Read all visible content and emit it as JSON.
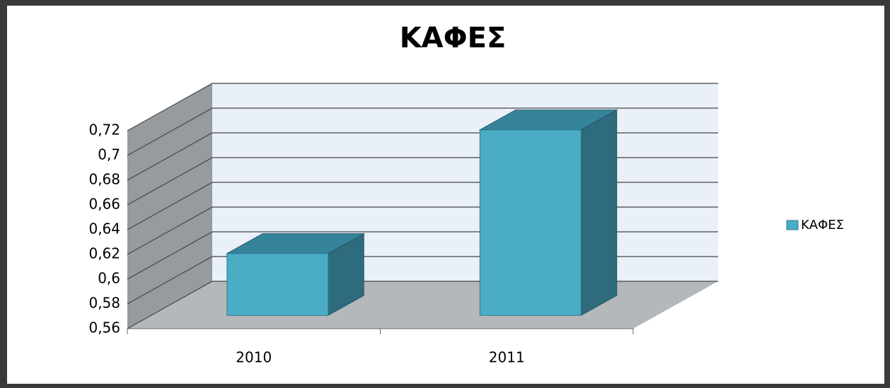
{
  "chart_data": {
    "type": "bar3d",
    "title": "ΚΑΦΕΣ",
    "categories": [
      "2010",
      "2011"
    ],
    "series": [
      {
        "name": "ΚΑΦΕΣ",
        "color": "#4bacc6",
        "values": [
          0.61,
          0.71
        ]
      }
    ],
    "ylim": [
      0.56,
      0.72
    ],
    "yticks": [
      {
        "value": 0.56,
        "label": "0,56"
      },
      {
        "value": 0.58,
        "label": "0,58"
      },
      {
        "value": 0.6,
        "label": "0,6"
      },
      {
        "value": 0.62,
        "label": "0,62"
      },
      {
        "value": 0.64,
        "label": "0,64"
      },
      {
        "value": 0.66,
        "label": "0,66"
      },
      {
        "value": 0.68,
        "label": "0,68"
      },
      {
        "value": 0.7,
        "label": "0,7"
      },
      {
        "value": 0.72,
        "label": "0,72"
      }
    ],
    "grid": true,
    "legend": "right"
  }
}
